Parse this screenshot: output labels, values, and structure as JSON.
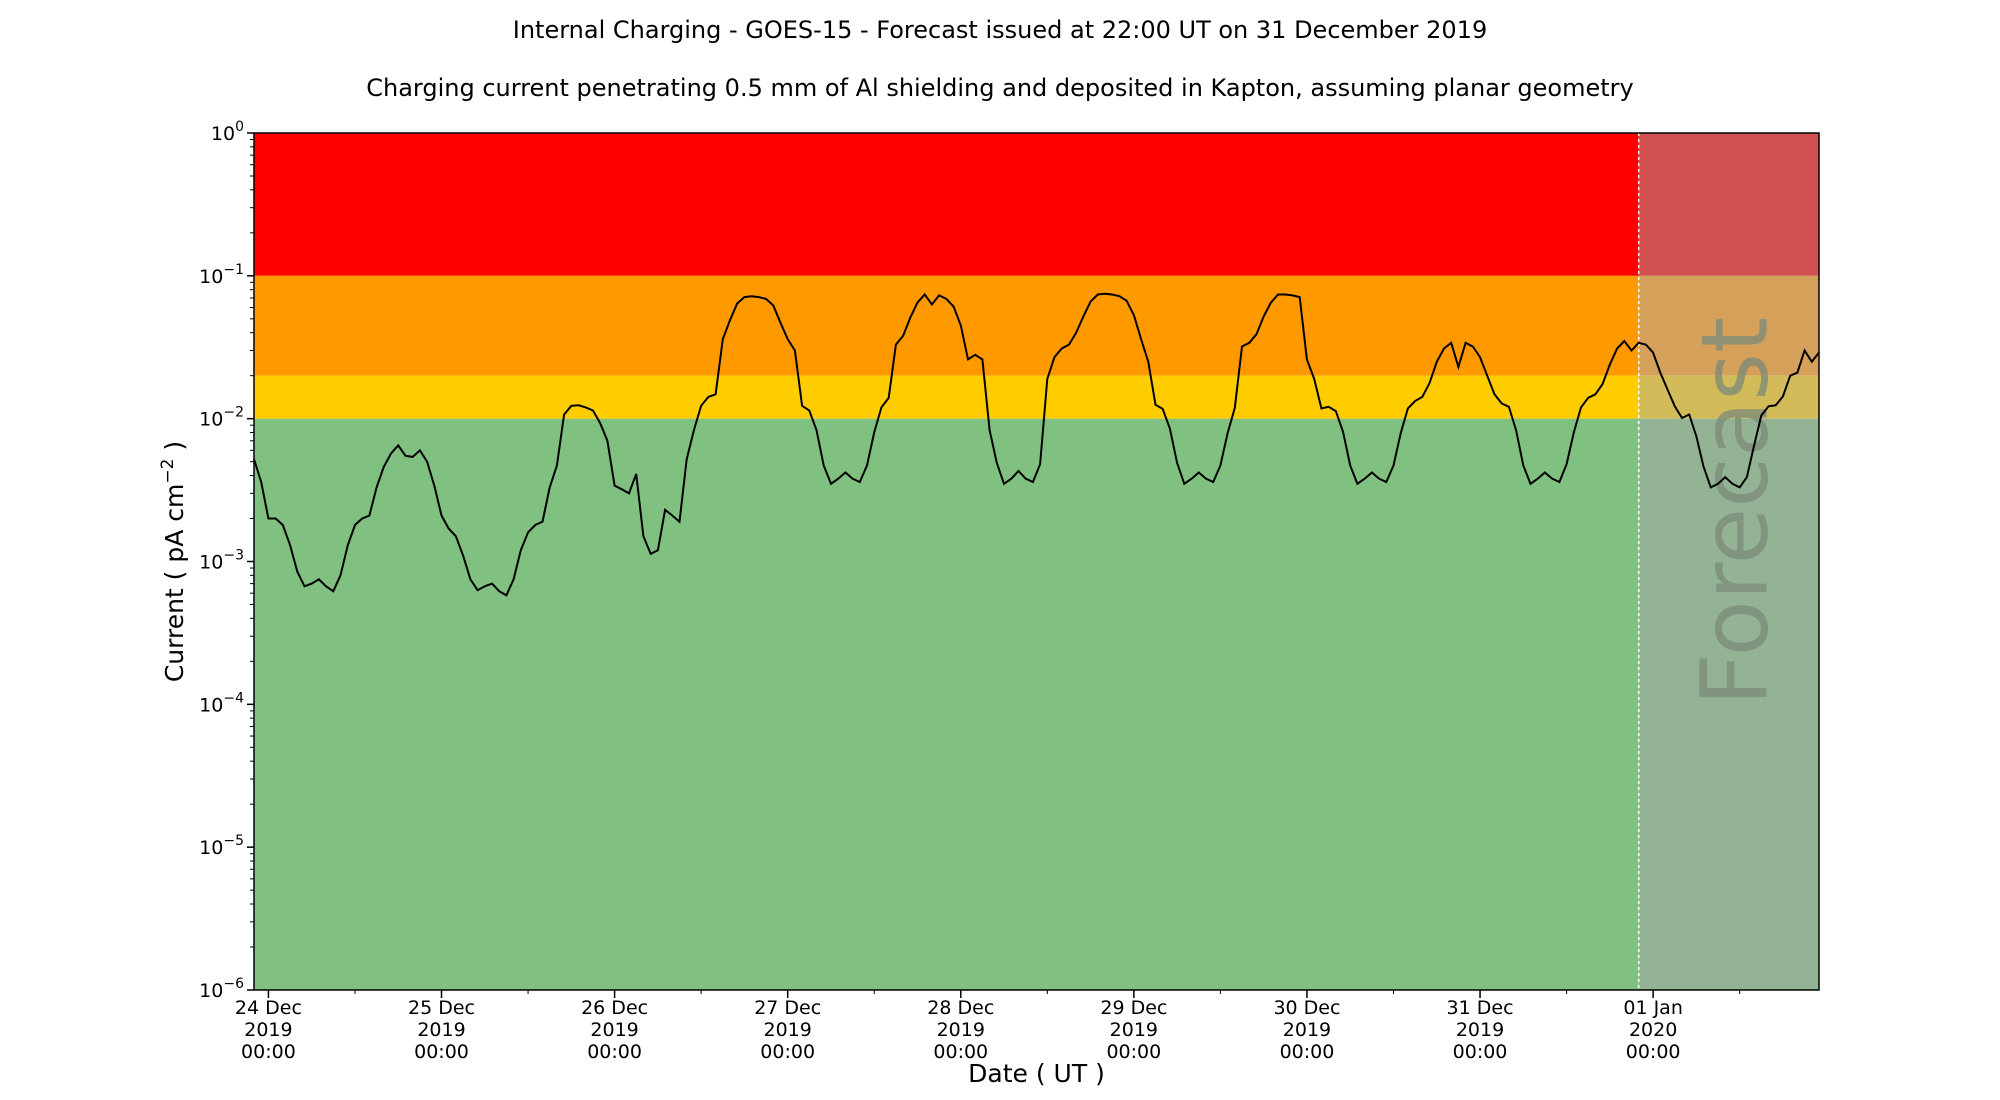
{
  "chart_data": {
    "type": "line",
    "title": "Internal Charging - GOES-15 - Forecast issued at 22:00 UT on 31 December 2019",
    "subtitle": "Charging current penetrating 0.5 mm of Al shielding and deposited in Kapton, assuming planar geometry",
    "xlabel": "Date ( UT )",
    "ylabel_main": "Current ( pA cm",
    "ylabel_exp": "−2",
    "ylabel_end": " )",
    "yscale": "log",
    "ylim": [
      1e-06,
      1
    ],
    "xlim": [
      "2019-12-23T22:00",
      "2020-01-01T23:00"
    ],
    "forecast_start": "2019-12-31T22:00",
    "forecast_label": "Forecast",
    "y_ticks": [
      {
        "value": 1e-06,
        "base": "10",
        "exp": "−6"
      },
      {
        "value": 1e-05,
        "base": "10",
        "exp": "−5"
      },
      {
        "value": 0.0001,
        "base": "10",
        "exp": "−4"
      },
      {
        "value": 0.001,
        "base": "10",
        "exp": "−3"
      },
      {
        "value": 0.01,
        "base": "10",
        "exp": "−2"
      },
      {
        "value": 0.1,
        "base": "10",
        "exp": "−1"
      },
      {
        "value": 1,
        "base": "10",
        "exp": "0"
      }
    ],
    "x_ticks": [
      {
        "value": "2019-12-24T00:00",
        "lines": [
          "24 Dec",
          "2019",
          "00:00"
        ]
      },
      {
        "value": "2019-12-25T00:00",
        "lines": [
          "25 Dec",
          "2019",
          "00:00"
        ]
      },
      {
        "value": "2019-12-26T00:00",
        "lines": [
          "26 Dec",
          "2019",
          "00:00"
        ]
      },
      {
        "value": "2019-12-27T00:00",
        "lines": [
          "27 Dec",
          "2019",
          "00:00"
        ]
      },
      {
        "value": "2019-12-28T00:00",
        "lines": [
          "28 Dec",
          "2019",
          "00:00"
        ]
      },
      {
        "value": "2019-12-29T00:00",
        "lines": [
          "29 Dec",
          "2019",
          "00:00"
        ]
      },
      {
        "value": "2019-12-30T00:00",
        "lines": [
          "30 Dec",
          "2019",
          "00:00"
        ]
      },
      {
        "value": "2019-12-31T00:00",
        "lines": [
          "31 Dec",
          "2019",
          "00:00"
        ]
      },
      {
        "value": "2020-01-01T00:00",
        "lines": [
          "01 Jan",
          "2020",
          "00:00"
        ]
      }
    ],
    "minor_x_ticks": [
      "2019-12-24T12:00",
      "2019-12-25T12:00",
      "2019-12-26T12:00",
      "2019-12-27T12:00",
      "2019-12-28T12:00",
      "2019-12-29T12:00",
      "2019-12-30T12:00",
      "2019-12-31T12:00",
      "2020-01-01T12:00"
    ],
    "bands": [
      {
        "from": 0.1,
        "to": 1,
        "color": "#ff0000",
        "forecast_color": "#d25252"
      },
      {
        "from": 0.02,
        "to": 0.1,
        "color": "#ff9900",
        "forecast_color": "#d4a05a"
      },
      {
        "from": 0.01,
        "to": 0.02,
        "color": "#ffcc00",
        "forecast_color": "#d4bb5a"
      },
      {
        "from": 1e-06,
        "to": 0.01,
        "color": "#80c080",
        "forecast_color": "#94b394"
      }
    ],
    "line_color": "#000000",
    "series": [
      {
        "x": [
          "2019-12-23T22:00",
          "2019-12-23T23:00",
          "2019-12-24T00:00",
          "2019-12-24T01:00",
          "2019-12-24T02:00",
          "2019-12-24T03:00",
          "2019-12-24T04:00",
          "2019-12-24T05:00",
          "2019-12-24T06:00",
          "2019-12-24T07:00",
          "2019-12-24T08:00",
          "2019-12-24T09:00",
          "2019-12-24T10:00",
          "2019-12-24T11:00",
          "2019-12-24T12:00",
          "2019-12-24T13:00",
          "2019-12-24T14:00",
          "2019-12-24T15:00",
          "2019-12-24T16:00",
          "2019-12-24T17:00",
          "2019-12-24T18:00",
          "2019-12-24T19:00",
          "2019-12-24T20:00",
          "2019-12-24T21:00",
          "2019-12-24T22:00",
          "2019-12-24T23:00",
          "2019-12-25T00:00",
          "2019-12-25T01:00",
          "2019-12-25T02:00",
          "2019-12-25T03:00",
          "2019-12-25T04:00",
          "2019-12-25T05:00",
          "2019-12-25T06:00",
          "2019-12-25T07:00",
          "2019-12-25T08:00",
          "2019-12-25T09:00",
          "2019-12-25T10:00",
          "2019-12-25T11:00",
          "2019-12-25T12:00",
          "2019-12-25T13:00",
          "2019-12-25T14:00",
          "2019-12-25T15:00",
          "2019-12-25T16:00",
          "2019-12-25T17:00",
          "2019-12-25T18:00",
          "2019-12-25T19:00",
          "2019-12-25T20:00",
          "2019-12-25T21:00",
          "2019-12-25T22:00",
          "2019-12-25T23:00",
          "2019-12-26T00:00",
          "2019-12-26T01:00",
          "2019-12-26T02:00",
          "2019-12-26T03:00",
          "2019-12-26T04:00",
          "2019-12-26T05:00",
          "2019-12-26T06:00",
          "2019-12-26T07:00",
          "2019-12-26T08:00",
          "2019-12-26T09:00",
          "2019-12-26T10:00",
          "2019-12-26T11:00",
          "2019-12-26T12:00",
          "2019-12-26T13:00",
          "2019-12-26T14:00",
          "2019-12-26T15:00",
          "2019-12-26T16:00",
          "2019-12-26T17:00",
          "2019-12-26T18:00",
          "2019-12-26T19:00",
          "2019-12-26T20:00",
          "2019-12-26T21:00",
          "2019-12-26T22:00",
          "2019-12-26T23:00",
          "2019-12-27T00:00",
          "2019-12-27T01:00",
          "2019-12-27T02:00",
          "2019-12-27T03:00",
          "2019-12-27T04:00",
          "2019-12-27T05:00",
          "2019-12-27T06:00",
          "2019-12-27T07:00",
          "2019-12-27T08:00",
          "2019-12-27T09:00",
          "2019-12-27T10:00",
          "2019-12-27T11:00",
          "2019-12-27T12:00",
          "2019-12-27T13:00",
          "2019-12-27T14:00",
          "2019-12-27T15:00",
          "2019-12-27T16:00",
          "2019-12-27T17:00",
          "2019-12-27T18:00",
          "2019-12-27T19:00",
          "2019-12-27T20:00",
          "2019-12-27T21:00",
          "2019-12-27T22:00",
          "2019-12-27T23:00",
          "2019-12-28T00:00",
          "2019-12-28T01:00",
          "2019-12-28T02:00",
          "2019-12-28T03:00",
          "2019-12-28T04:00",
          "2019-12-28T05:00",
          "2019-12-28T06:00",
          "2019-12-28T07:00",
          "2019-12-28T08:00",
          "2019-12-28T09:00",
          "2019-12-28T10:00",
          "2019-12-28T11:00",
          "2019-12-28T12:00",
          "2019-12-28T13:00",
          "2019-12-28T14:00",
          "2019-12-28T15:00",
          "2019-12-28T16:00",
          "2019-12-28T17:00",
          "2019-12-28T18:00",
          "2019-12-28T19:00",
          "2019-12-28T20:00",
          "2019-12-28T21:00",
          "2019-12-28T22:00",
          "2019-12-28T23:00",
          "2019-12-29T00:00",
          "2019-12-29T01:00",
          "2019-12-29T02:00",
          "2019-12-29T03:00",
          "2019-12-29T04:00",
          "2019-12-29T05:00",
          "2019-12-29T06:00",
          "2019-12-29T07:00",
          "2019-12-29T08:00",
          "2019-12-29T09:00",
          "2019-12-29T10:00",
          "2019-12-29T11:00",
          "2019-12-29T12:00",
          "2019-12-29T13:00",
          "2019-12-29T14:00",
          "2019-12-29T15:00",
          "2019-12-29T16:00",
          "2019-12-29T17:00",
          "2019-12-29T18:00",
          "2019-12-29T19:00",
          "2019-12-29T20:00",
          "2019-12-29T21:00",
          "2019-12-29T22:00",
          "2019-12-29T23:00",
          "2019-12-30T00:00",
          "2019-12-30T01:00",
          "2019-12-30T02:00",
          "2019-12-30T03:00",
          "2019-12-30T04:00",
          "2019-12-30T05:00",
          "2019-12-30T06:00",
          "2019-12-30T07:00",
          "2019-12-30T08:00",
          "2019-12-30T09:00",
          "2019-12-30T10:00",
          "2019-12-30T11:00",
          "2019-12-30T12:00",
          "2019-12-30T13:00",
          "2019-12-30T14:00",
          "2019-12-30T15:00",
          "2019-12-30T16:00",
          "2019-12-30T17:00",
          "2019-12-30T18:00",
          "2019-12-30T19:00",
          "2019-12-30T20:00",
          "2019-12-30T21:00",
          "2019-12-30T22:00",
          "2019-12-30T23:00",
          "2019-12-31T00:00",
          "2019-12-31T01:00",
          "2019-12-31T02:00",
          "2019-12-31T03:00",
          "2019-12-31T04:00",
          "2019-12-31T05:00",
          "2019-12-31T06:00",
          "2019-12-31T07:00",
          "2019-12-31T08:00",
          "2019-12-31T09:00",
          "2019-12-31T10:00",
          "2019-12-31T11:00",
          "2019-12-31T12:00",
          "2019-12-31T13:00",
          "2019-12-31T14:00",
          "2019-12-31T15:00",
          "2019-12-31T16:00",
          "2019-12-31T17:00",
          "2019-12-31T18:00",
          "2019-12-31T19:00",
          "2019-12-31T20:00",
          "2019-12-31T21:00",
          "2019-12-31T22:00",
          "2019-12-31T23:00",
          "2020-01-01T00:00",
          "2020-01-01T01:00",
          "2020-01-01T02:00",
          "2020-01-01T03:00",
          "2020-01-01T04:00",
          "2020-01-01T05:00",
          "2020-01-01T06:00",
          "2020-01-01T07:00",
          "2020-01-01T08:00",
          "2020-01-01T09:00",
          "2020-01-01T10:00",
          "2020-01-01T11:00",
          "2020-01-01T12:00",
          "2020-01-01T13:00",
          "2020-01-01T14:00",
          "2020-01-01T15:00",
          "2020-01-01T16:00",
          "2020-01-01T17:00",
          "2020-01-01T18:00",
          "2020-01-01T19:00",
          "2020-01-01T20:00",
          "2020-01-01T21:00",
          "2020-01-01T22:00",
          "2020-01-01T23:00"
        ],
        "values": [
          0.0052,
          0.0036,
          0.002,
          0.002,
          0.0018,
          0.0013,
          0.00085,
          0.00067,
          0.0007,
          0.00075,
          0.00067,
          0.00062,
          0.0008,
          0.0013,
          0.0018,
          0.002,
          0.0021,
          0.0033,
          0.0046,
          0.0057,
          0.0065,
          0.0055,
          0.0054,
          0.006,
          0.005,
          0.0034,
          0.0021,
          0.0017,
          0.0015,
          0.0011,
          0.00075,
          0.00063,
          0.00067,
          0.0007,
          0.00062,
          0.00058,
          0.00075,
          0.0012,
          0.0016,
          0.0018,
          0.0019,
          0.0033,
          0.0047,
          0.0107,
          0.0123,
          0.0124,
          0.012,
          0.0114,
          0.0093,
          0.007,
          0.0034,
          0.0032,
          0.003,
          0.0041,
          0.0015,
          0.00113,
          0.0012,
          0.0023,
          0.0021,
          0.0019,
          0.0052,
          0.0083,
          0.0123,
          0.0142,
          0.0148,
          0.036,
          0.049,
          0.064,
          0.071,
          0.072,
          0.071,
          0.069,
          0.062,
          0.047,
          0.036,
          0.03,
          0.0123,
          0.0114,
          0.0083,
          0.0047,
          0.0035,
          0.0038,
          0.0042,
          0.0038,
          0.0036,
          0.0047,
          0.008,
          0.012,
          0.014,
          0.033,
          0.038,
          0.051,
          0.065,
          0.074,
          0.063,
          0.073,
          0.069,
          0.061,
          0.045,
          0.026,
          0.028,
          0.026,
          0.0083,
          0.0049,
          0.0035,
          0.0038,
          0.0043,
          0.0038,
          0.0036,
          0.0048,
          0.019,
          0.027,
          0.031,
          0.033,
          0.04,
          0.052,
          0.066,
          0.074,
          0.075,
          0.074,
          0.072,
          0.067,
          0.053,
          0.036,
          0.025,
          0.0125,
          0.0117,
          0.0085,
          0.0049,
          0.0035,
          0.0038,
          0.0042,
          0.0038,
          0.0036,
          0.0047,
          0.0079,
          0.0119,
          0.032,
          0.034,
          0.039,
          0.052,
          0.065,
          0.074,
          0.074,
          0.073,
          0.071,
          0.026,
          0.019,
          0.0118,
          0.0121,
          0.0113,
          0.0081,
          0.0047,
          0.0035,
          0.0038,
          0.0042,
          0.0038,
          0.0036,
          0.0047,
          0.0079,
          0.0118,
          0.0133,
          0.0142,
          0.0178,
          0.025,
          0.031,
          0.034,
          0.023,
          0.034,
          0.032,
          0.027,
          0.02,
          0.0148,
          0.0128,
          0.0121,
          0.0083,
          0.0047,
          0.0035,
          0.0038,
          0.0042,
          0.0038,
          0.0036,
          0.0048,
          0.008,
          0.012,
          0.014,
          0.0148,
          0.0175,
          0.024,
          0.031,
          0.035,
          0.03,
          0.034,
          0.033,
          0.029,
          0.021,
          0.016,
          0.0122,
          0.0101,
          0.0107,
          0.0075,
          0.0046,
          0.0033,
          0.0035,
          0.0039,
          0.0035,
          0.0033,
          0.0039,
          0.0065,
          0.0105,
          0.0122,
          0.0124,
          0.0143,
          0.02,
          0.021,
          0.03,
          0.025,
          0.029
        ]
      }
    ]
  }
}
